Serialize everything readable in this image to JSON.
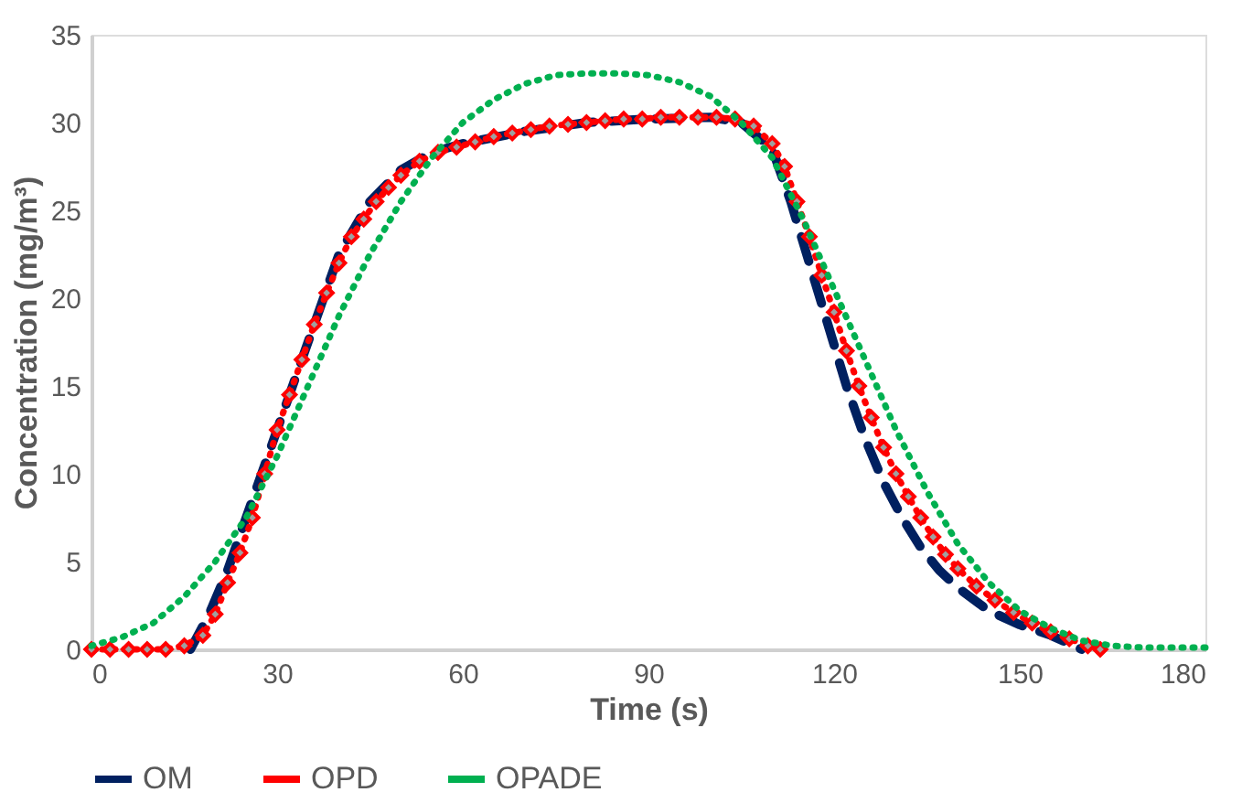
{
  "chart_data": {
    "type": "line",
    "xlabel": "Time (s)",
    "ylabel": "Concentration (mg/m³)",
    "xlim": [
      0,
      180
    ],
    "xticks": [
      0,
      30,
      60,
      90,
      120,
      150,
      180
    ],
    "ylim": [
      0,
      35
    ],
    "yticks": [
      0,
      5,
      10,
      15,
      20,
      25,
      30,
      35
    ],
    "grid": false,
    "legend": "bottom",
    "series": [
      {
        "name": "OM",
        "color": "#002060",
        "line_style": "dashed",
        "marker": "none",
        "x": [
          16,
          19,
          22,
          25,
          28,
          31,
          34,
          37,
          40,
          45,
          50,
          55,
          60,
          70,
          80,
          90,
          100,
          105,
          110,
          113,
          116,
          119,
          122,
          125,
          128,
          131,
          134,
          137,
          140,
          145,
          150,
          155,
          160
        ],
        "values": [
          0,
          2,
          4.5,
          7.5,
          10.5,
          13.5,
          16.5,
          19.5,
          22.5,
          25.5,
          27.3,
          28.3,
          28.8,
          29.5,
          30,
          30.2,
          30.3,
          30,
          28.5,
          25.5,
          22,
          18.5,
          15,
          12,
          9.5,
          7.5,
          5.8,
          4.5,
          3.5,
          2.2,
          1.4,
          0.8,
          0
        ]
      },
      {
        "name": "OPD",
        "color": "#ff0000",
        "line_style": "dotted",
        "marker": "diamond",
        "x": [
          0,
          3,
          6,
          9,
          12,
          15,
          18,
          20,
          22,
          24,
          26,
          28,
          30,
          32,
          34,
          36,
          38,
          40,
          42,
          44,
          46,
          48,
          50,
          53,
          56,
          59,
          62,
          65,
          68,
          71,
          74,
          77,
          80,
          83,
          86,
          89,
          92,
          95,
          98,
          101,
          104,
          107,
          110,
          112,
          114,
          116,
          118,
          120,
          122,
          124,
          126,
          128,
          130,
          132,
          134,
          136,
          138,
          140,
          143,
          146,
          149,
          152,
          155,
          158,
          161,
          163
        ],
        "values": [
          0,
          0,
          0,
          0,
          0,
          0.2,
          0.8,
          2,
          3.8,
          5.5,
          7.5,
          10,
          12.5,
          14.5,
          16.5,
          18.5,
          20.3,
          22,
          23.5,
          24.5,
          25.5,
          26.3,
          27,
          27.8,
          28.3,
          28.6,
          28.9,
          29.2,
          29.4,
          29.6,
          29.8,
          29.9,
          30,
          30.1,
          30.2,
          30.2,
          30.3,
          30.3,
          30.3,
          30.3,
          30.2,
          29.8,
          28.8,
          27.5,
          25.5,
          23.5,
          21.3,
          19.2,
          17,
          15,
          13.2,
          11.5,
          10,
          8.7,
          7.5,
          6.4,
          5.4,
          4.6,
          3.6,
          2.8,
          2.1,
          1.5,
          1,
          0.6,
          0.2,
          0
        ]
      },
      {
        "name": "OPADE",
        "color": "#00b050",
        "line_style": "dotted",
        "marker": "none",
        "x": [
          0,
          5,
          10,
          15,
          20,
          25,
          30,
          35,
          40,
          45,
          50,
          55,
          60,
          65,
          70,
          75,
          80,
          85,
          90,
          95,
          100,
          105,
          110,
          115,
          120,
          125,
          130,
          135,
          140,
          145,
          150,
          155,
          160,
          165,
          170,
          175,
          180
        ],
        "values": [
          0.2,
          0.7,
          1.5,
          3,
          5,
          7.5,
          11,
          15,
          19,
          22.5,
          25.5,
          28,
          30,
          31.3,
          32.2,
          32.7,
          32.8,
          32.8,
          32.7,
          32.3,
          31.5,
          30,
          28,
          24.5,
          20.5,
          16.5,
          12.5,
          9,
          6,
          3.8,
          2.2,
          1.2,
          0.5,
          0.2,
          0.1,
          0.1,
          0.1
        ]
      }
    ]
  }
}
